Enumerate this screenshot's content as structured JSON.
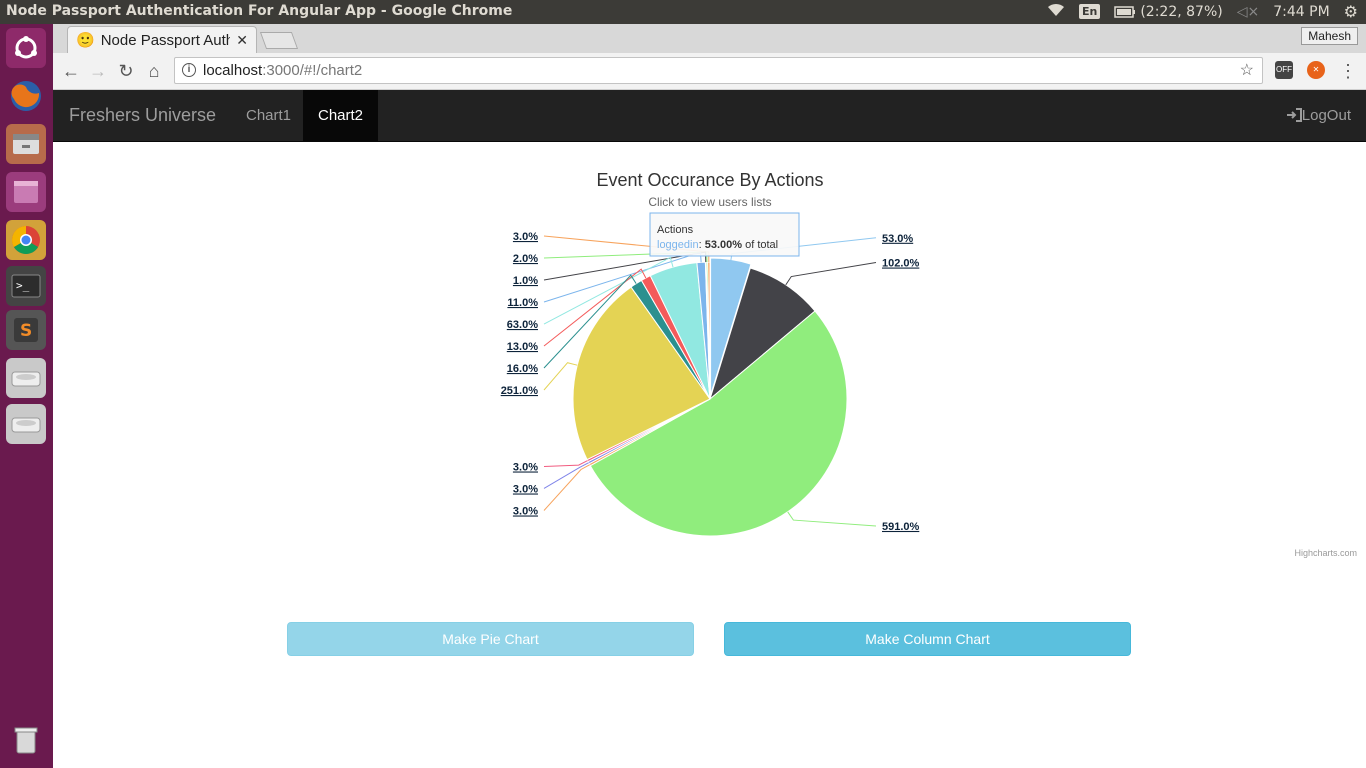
{
  "os": {
    "window_title": "Node Passport Authentication For Angular App - Google Chrome",
    "keyboard": "En",
    "battery": "(2:22, 87%)",
    "clock": "7:44 PM"
  },
  "browser": {
    "tab_title": "Node Passport Authentication For Angular App",
    "profile_name": "Mahesh",
    "url_host": "localhost",
    "url_path": ":3000/#!/chart2",
    "ext_off_label": "OFF"
  },
  "app": {
    "brand": "Freshers Universe",
    "nav": [
      {
        "label": "Chart1",
        "active": false
      },
      {
        "label": "Chart2",
        "active": true
      }
    ],
    "logout_label": "LogOut",
    "make_pie_label": "Make Pie Chart",
    "make_column_label": "Make Column Chart",
    "credits": "Highcharts.com"
  },
  "chart_data": {
    "type": "pie",
    "title": "Event Occurance By Actions",
    "subtitle": "Click to view users lists",
    "series_name": "Actions",
    "slices": [
      {
        "label": "53.0%",
        "value": 53,
        "color": "#90c8f0"
      },
      {
        "label": "102.0%",
        "value": 102,
        "color": "#434348"
      },
      {
        "label": "591.0%",
        "value": 591,
        "color": "#90ed7d"
      },
      {
        "label": "3.0%",
        "value": 3,
        "color": "#f7a35c"
      },
      {
        "label": "3.0%",
        "value": 3,
        "color": "#8085e9"
      },
      {
        "label": "3.0%",
        "value": 3,
        "color": "#f15c80"
      },
      {
        "label": "251.0%",
        "value": 251,
        "color": "#e4d354"
      },
      {
        "label": "16.0%",
        "value": 16,
        "color": "#2b908f"
      },
      {
        "label": "13.0%",
        "value": 13,
        "color": "#f45b5b"
      },
      {
        "label": "63.0%",
        "value": 63,
        "color": "#91e8e1"
      },
      {
        "label": "11.0%",
        "value": 11,
        "color": "#7cb5ec"
      },
      {
        "label": "1.0%",
        "value": 1,
        "color": "#434348"
      },
      {
        "label": "2.0%",
        "value": 2,
        "color": "#90ed7d"
      },
      {
        "label": "3.0%",
        "value": 3,
        "color": "#f7a35c"
      }
    ],
    "tooltip": {
      "series": "Actions",
      "point": "loggedin",
      "value": "53.00%",
      "suffix": " of total"
    }
  }
}
